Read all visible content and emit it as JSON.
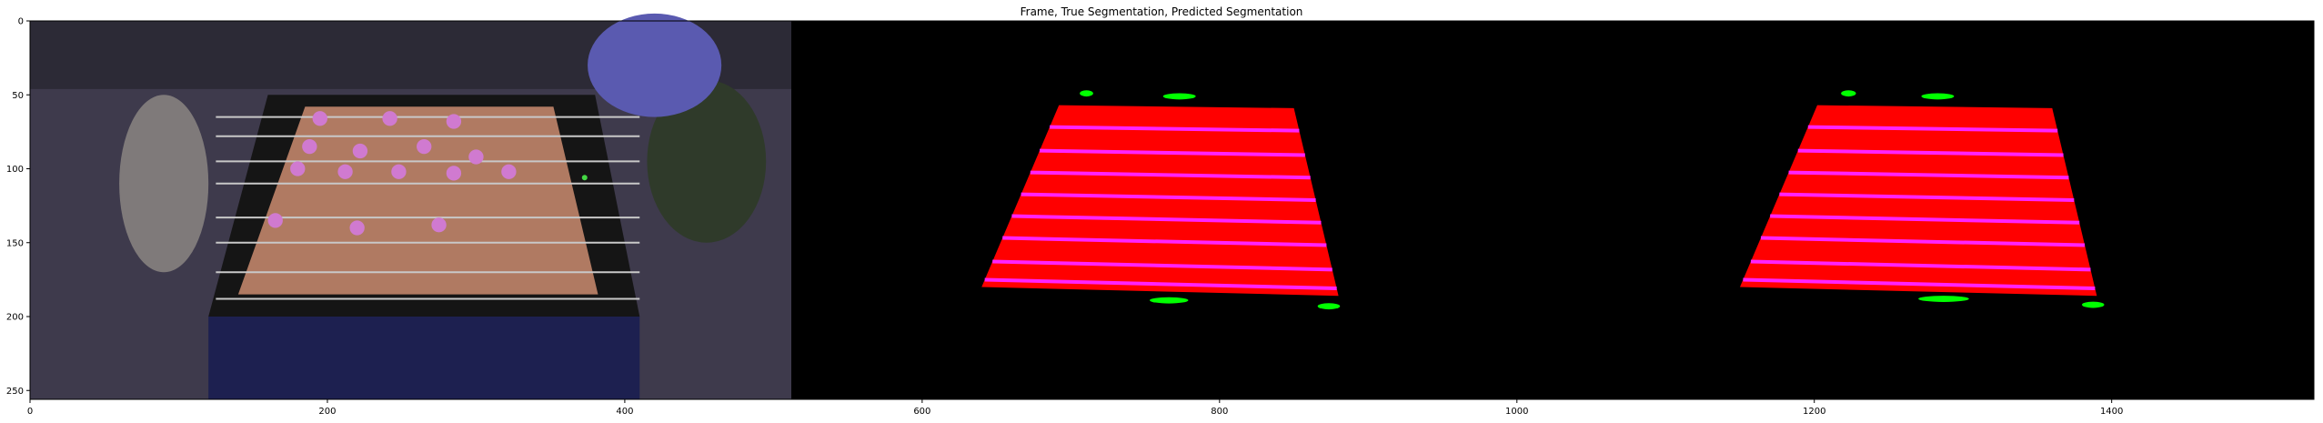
{
  "chart_data": {
    "type": "image",
    "title": "Frame, True Segmentation, Predicted Segmentation",
    "xlim": [
      0,
      1536
    ],
    "ylim": [
      256,
      0
    ],
    "x_ticks": [
      0,
      200,
      400,
      600,
      800,
      1000,
      1200,
      1400
    ],
    "y_ticks": [
      0,
      50,
      100,
      150,
      200,
      250
    ],
    "panels": [
      {
        "name": "frame",
        "x_range": [
          0,
          512
        ],
        "table_corners": [
          [
            185,
            58
          ],
          [
            352,
            58
          ],
          [
            382,
            185
          ],
          [
            140,
            185
          ]
        ],
        "rods_y": [
          65,
          78,
          95,
          110,
          133,
          150,
          170,
          188
        ],
        "pink_players": [
          [
            195,
            66
          ],
          [
            242,
            66
          ],
          [
            285,
            68
          ],
          [
            188,
            85
          ],
          [
            222,
            88
          ],
          [
            265,
            85
          ],
          [
            300,
            92
          ],
          [
            180,
            100
          ],
          [
            212,
            102
          ],
          [
            248,
            102
          ],
          [
            285,
            103
          ],
          [
            322,
            102
          ],
          [
            165,
            135
          ],
          [
            220,
            140
          ],
          [
            275,
            138
          ]
        ],
        "colors": {
          "background": "#3e3a4c",
          "table": "#b07a62",
          "player": "#d07ad0",
          "ball": "#44d844"
        }
      },
      {
        "name": "true-segmentation",
        "x_range": [
          512,
          1024
        ],
        "table_corners": [
          [
            692,
            57
          ],
          [
            850,
            59
          ],
          [
            880,
            186
          ],
          [
            640,
            180
          ]
        ],
        "stripe_fractions": [
          0.12,
          0.25,
          0.37,
          0.49,
          0.61,
          0.73,
          0.86,
          0.96
        ],
        "blobs": [
          [
            706,
            49,
            9,
            3
          ],
          [
            762,
            51,
            22,
            3
          ],
          [
            753,
            189,
            26,
            3
          ],
          [
            866,
            193,
            15,
            3
          ]
        ],
        "colors": {
          "background": "#000000",
          "table": "#ff0000",
          "stripe": "#ff22ff",
          "blob": "#00ff00"
        }
      },
      {
        "name": "predicted-segmentation",
        "x_range": [
          1024,
          1536
        ],
        "table_corners": [
          [
            1202,
            57
          ],
          [
            1360,
            59
          ],
          [
            1390,
            186
          ],
          [
            1150,
            180
          ]
        ],
        "stripe_fractions": [
          0.12,
          0.25,
          0.37,
          0.49,
          0.61,
          0.73,
          0.86,
          0.96
        ],
        "blobs": [
          [
            1218,
            49,
            10,
            3
          ],
          [
            1272,
            51,
            22,
            3
          ],
          [
            1270,
            188,
            34,
            3
          ],
          [
            1380,
            192,
            15,
            3
          ]
        ],
        "colors": {
          "background": "#000000",
          "table": "#ff0000",
          "stripe": "#ff22ff",
          "blob": "#00ff00"
        }
      }
    ]
  }
}
